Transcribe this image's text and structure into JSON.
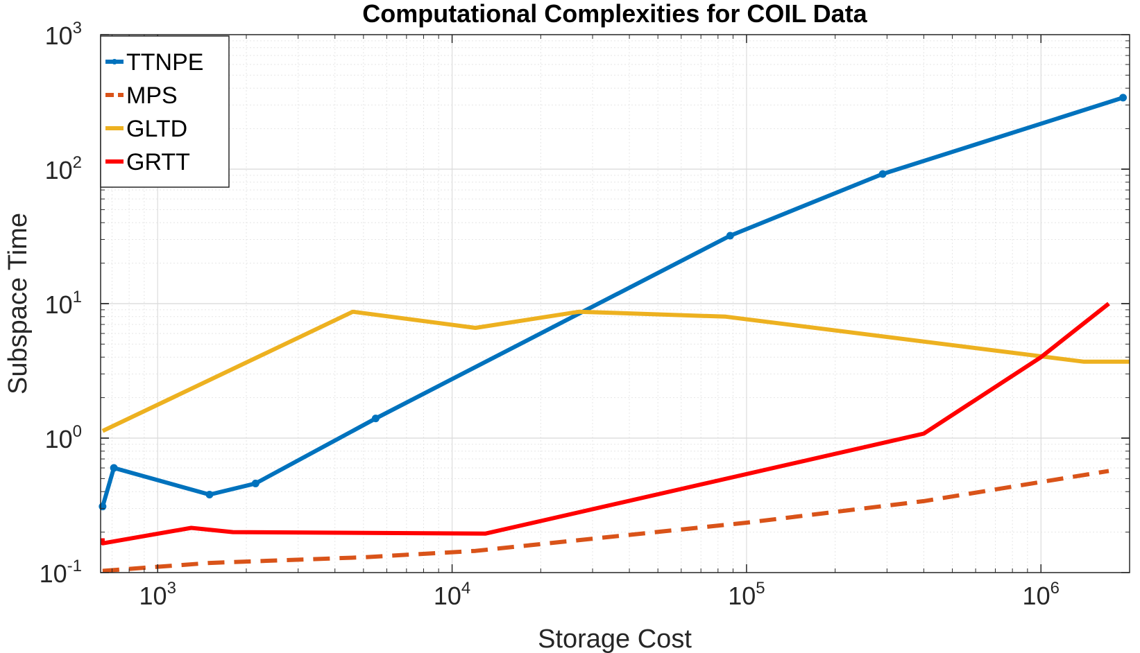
{
  "chart_data": {
    "type": "line",
    "title": "Computational Complexities for COIL Data",
    "xlabel": "Storage Cost",
    "ylabel": "Subspace Time",
    "xscale": "log",
    "yscale": "log",
    "xlim": [
      640,
      2000000
    ],
    "ylim": [
      0.1,
      1000
    ],
    "grid": true,
    "legend_position": "top-left",
    "x_ticks": [
      {
        "base": "10",
        "exp": "3",
        "value": 1000
      },
      {
        "base": "10",
        "exp": "4",
        "value": 10000
      },
      {
        "base": "10",
        "exp": "5",
        "value": 100000
      },
      {
        "base": "10",
        "exp": "6",
        "value": 1000000
      }
    ],
    "y_ticks": [
      {
        "base": "10",
        "exp": "-1",
        "value": 0.1
      },
      {
        "base": "10",
        "exp": "0",
        "value": 1
      },
      {
        "base": "10",
        "exp": "1",
        "value": 10
      },
      {
        "base": "10",
        "exp": "2",
        "value": 100
      },
      {
        "base": "10",
        "exp": "3",
        "value": 1000
      }
    ],
    "series": [
      {
        "name": "TTNPE",
        "color": "#0072BD",
        "style": "solid",
        "markers": true,
        "x": [
          650,
          710,
          1500,
          2150,
          5500,
          88000,
          290000,
          1900000
        ],
        "y": [
          0.31,
          0.6,
          0.38,
          0.46,
          1.4,
          32,
          92,
          340
        ]
      },
      {
        "name": "MPS",
        "color": "#D95319",
        "style": "dashed",
        "markers": false,
        "x": [
          650,
          1500,
          5000,
          12000,
          100000,
          400000,
          1700000
        ],
        "y": [
          0.103,
          0.118,
          0.13,
          0.145,
          0.235,
          0.34,
          0.57
        ]
      },
      {
        "name": "GLTD",
        "color": "#EDB120",
        "style": "solid",
        "markers": false,
        "x": [
          650,
          4600,
          12000,
          27000,
          85000,
          1400000,
          2000000
        ],
        "y": [
          1.13,
          8.7,
          6.6,
          8.7,
          8.0,
          3.7,
          3.7
        ]
      },
      {
        "name": "GRTT",
        "color": "#FF0000",
        "style": "solid",
        "markers": false,
        "x": [
          650,
          650,
          1300,
          1800,
          13000,
          400000,
          1000000,
          1700000
        ],
        "y": [
          0.18,
          0.165,
          0.215,
          0.2,
          0.195,
          1.08,
          4,
          10
        ]
      }
    ]
  }
}
